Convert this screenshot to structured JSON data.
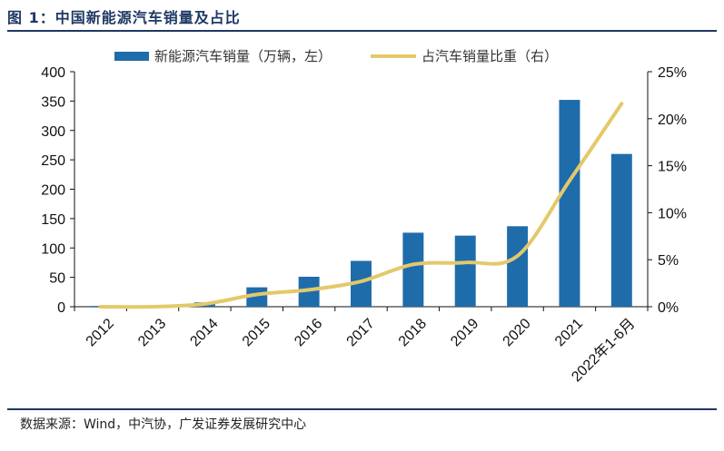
{
  "title": "图 1：中国新能源汽车销量及占比",
  "source": "数据来源：Wind，中汽协，广发证券发展研究中心",
  "colors": {
    "bar": "#1f6cab",
    "line": "#e3c96a",
    "title": "#1f3864"
  },
  "chart_data": {
    "type": "bar",
    "categories": [
      "2012",
      "2013",
      "2014",
      "2015",
      "2016",
      "2017",
      "2018",
      "2019",
      "2020",
      "2021",
      "2022年1-6月"
    ],
    "series": [
      {
        "name": "新能源汽车销量（万辆，左）",
        "type": "bar",
        "axis": "left",
        "values": [
          1.3,
          1.8,
          7.5,
          33,
          51,
          78,
          126,
          121,
          137,
          352,
          260
        ]
      },
      {
        "name": "占汽车销量比重（右）",
        "type": "line",
        "axis": "right",
        "values": [
          0.0,
          0.0,
          0.3,
          1.3,
          1.8,
          2.7,
          4.5,
          4.7,
          5.4,
          13.4,
          21.6
        ]
      }
    ],
    "left_axis": {
      "ylim": [
        0,
        400
      ],
      "ticks": [
        "0",
        "50",
        "100",
        "150",
        "200",
        "250",
        "300",
        "350",
        "400"
      ]
    },
    "right_axis": {
      "ylim": [
        0,
        25
      ],
      "ticks": [
        "0%",
        "5%",
        "10%",
        "15%",
        "20%",
        "25%"
      ]
    },
    "legend_position": "top",
    "grid": false
  }
}
